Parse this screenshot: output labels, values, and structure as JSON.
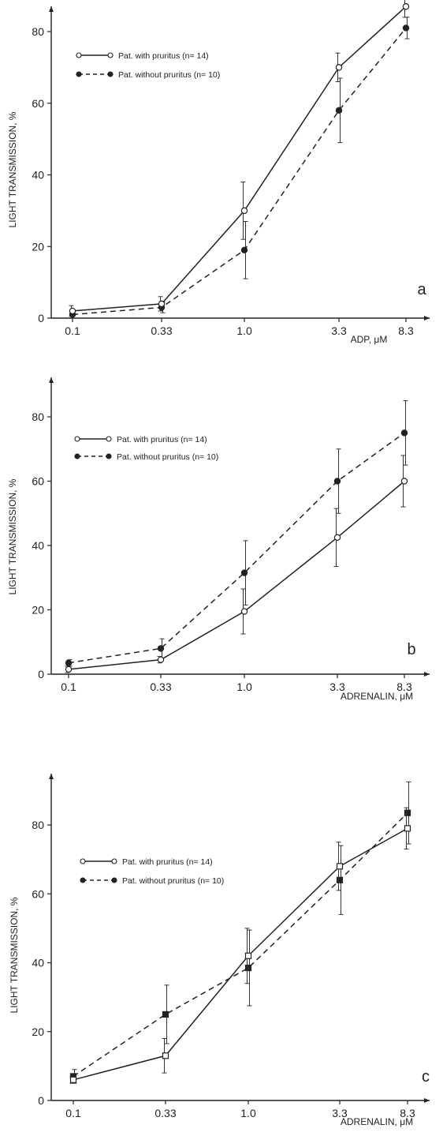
{
  "chart_data": [
    {
      "type": "line",
      "panel_letter": "a",
      "xlabel": "ADP, μM",
      "ylabel": "LIGHT TRANSMISSION, %",
      "categories": [
        "0.1",
        "0.33",
        "1.0",
        "3.3",
        "8.3"
      ],
      "x_tick_labels": [
        "0.1",
        "0.33",
        "1.0",
        "3.3",
        "8.3"
      ],
      "y_ticks": [
        0,
        20,
        40,
        60,
        80
      ],
      "ylim": [
        0,
        90
      ],
      "grid": false,
      "legend_position": "top-left",
      "series": [
        {
          "name": "Pat. with pruritus (n= 14)",
          "style": "solid",
          "marker": "open-circle",
          "values": [
            2,
            4,
            30,
            70,
            87
          ],
          "error": [
            1.5,
            2,
            8,
            4,
            3
          ]
        },
        {
          "name": "Pat. without pruritus (n= 10)",
          "style": "dashed",
          "marker": "filled-circle",
          "values": [
            1,
            3,
            19,
            58,
            81
          ],
          "error": [
            1,
            1.5,
            8,
            9,
            3
          ]
        }
      ]
    },
    {
      "type": "line",
      "panel_letter": "b",
      "xlabel": "ADRENALIN, μM",
      "ylabel": "LIGHT TRANSMISSION, %",
      "categories": [
        "0.1",
        "0.33",
        "1.0",
        "3.3",
        "8.3"
      ],
      "x_tick_labels": [
        "0.1",
        "0.33",
        "1.0",
        "3.3",
        "8.3"
      ],
      "y_ticks": [
        0,
        20,
        40,
        60,
        80
      ],
      "ylim": [
        0,
        88
      ],
      "grid": false,
      "legend_position": "top-left",
      "series": [
        {
          "name": "Pat. with pruritus (n= 14)",
          "style": "solid",
          "marker": "open-circle",
          "values": [
            1.5,
            4.5,
            19.5,
            42.5,
            60
          ],
          "error": [
            1,
            1,
            7,
            9,
            8
          ]
        },
        {
          "name": "Pat. without pruritus (n= 10)",
          "style": "dashed",
          "marker": "filled-circle",
          "values": [
            3.5,
            8,
            31.5,
            60,
            75
          ],
          "error": [
            1,
            3,
            10,
            10,
            10
          ]
        }
      ]
    },
    {
      "type": "line",
      "panel_letter": "c",
      "xlabel": "ADRENALIN, μM",
      "ylabel": "LIGHT TRANSMISSION, %",
      "categories": [
        "0.1",
        "0.33",
        "1.0",
        "3.3",
        "8.3"
      ],
      "x_tick_labels": [
        "0.1",
        "0.33",
        "1.0",
        "3.3",
        "8.3"
      ],
      "y_ticks": [
        0,
        20,
        40,
        60,
        80
      ],
      "ylim": [
        0,
        92
      ],
      "grid": false,
      "legend_position": "top-left",
      "series": [
        {
          "name": "Pat. with pruritus (n= 14)",
          "style": "solid",
          "marker": "open-square",
          "values": [
            6,
            13,
            42,
            68,
            79
          ],
          "error": [
            1,
            5,
            8,
            7,
            6
          ]
        },
        {
          "name": "Pat. without pruritus (n= 10)",
          "style": "dashed",
          "marker": "filled-square",
          "values": [
            7,
            25,
            38.5,
            64,
            83.5
          ],
          "error": [
            2,
            8.5,
            11,
            10,
            9
          ]
        }
      ]
    }
  ]
}
